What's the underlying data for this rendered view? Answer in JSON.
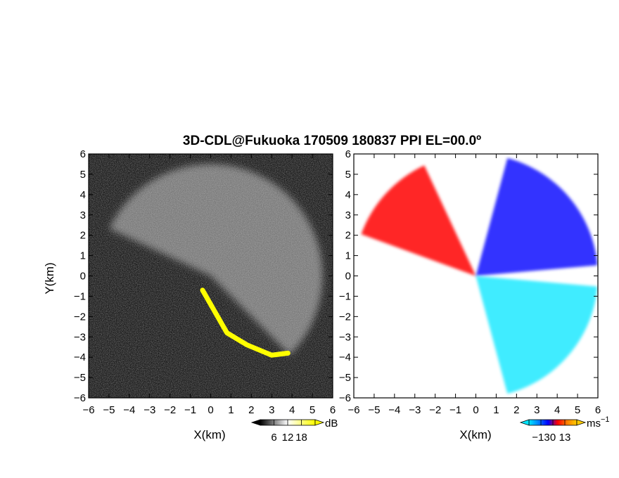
{
  "figure": {
    "title": "3D-CDL@Fukuoka 170509 180837 PPI EL=00.0º"
  },
  "chart_data": [
    {
      "type": "heatmap",
      "panel": "left",
      "variable": "reflectivity",
      "xlabel": "X(km)",
      "ylabel": "Y(km)",
      "xlim": [
        -6,
        6
      ],
      "ylim": [
        -6,
        6
      ],
      "xticks": [
        -6,
        -5,
        -4,
        -3,
        -2,
        -1,
        0,
        1,
        2,
        3,
        4,
        5,
        6
      ],
      "yticks": [
        -6,
        -5,
        -4,
        -3,
        -2,
        -1,
        0,
        1,
        2,
        3,
        4,
        5,
        6
      ],
      "colorbar": {
        "ticks": [
          6,
          12,
          18
        ],
        "unit": "dB",
        "colors": [
          "#000000",
          "#ffffff"
        ],
        "over_color": "#ffff00"
      },
      "colors": {
        "background": "#1e1e1e",
        "echo": "#d8d8d8",
        "clutter": "#ffff00"
      },
      "features": {
        "echo_sector_angles_deg": [
          -45,
          155
        ],
        "echo_range_km": [
          0,
          5.5
        ],
        "clutter_boundary_points": [
          [
            -0.4,
            -0.7
          ],
          [
            0.8,
            -2.8
          ],
          [
            1.8,
            -3.4
          ],
          [
            3.0,
            -3.9
          ],
          [
            3.8,
            -3.8
          ]
        ]
      }
    },
    {
      "type": "heatmap",
      "panel": "right",
      "variable": "doppler_velocity",
      "xlabel": "X(km)",
      "ylabel": "",
      "xlim": [
        -6,
        6
      ],
      "ylim": [
        -6,
        6
      ],
      "xticks": [
        -6,
        -5,
        -4,
        -3,
        -2,
        -1,
        0,
        1,
        2,
        3,
        4,
        5,
        6
      ],
      "yticks": [
        -6,
        -5,
        -4,
        -3,
        -2,
        -1,
        0,
        1,
        2,
        3,
        4,
        5,
        6
      ],
      "colorbar": {
        "ticks": [
          -13,
          0,
          13
        ],
        "unit": "ms",
        "unit_exp": "−1",
        "colors": [
          "#00e5ff",
          "#0080ff",
          "#0000ff",
          "#ff0000",
          "#ff8000",
          "#ffcc00"
        ]
      },
      "features": {
        "receding_sector_angles_deg": [
          115,
          160
        ],
        "approaching_upper_sector_angles_deg": [
          5,
          75
        ],
        "approaching_lower_sector_angles_deg": [
          -75,
          -5
        ],
        "range_km": [
          0,
          6
        ]
      }
    }
  ]
}
